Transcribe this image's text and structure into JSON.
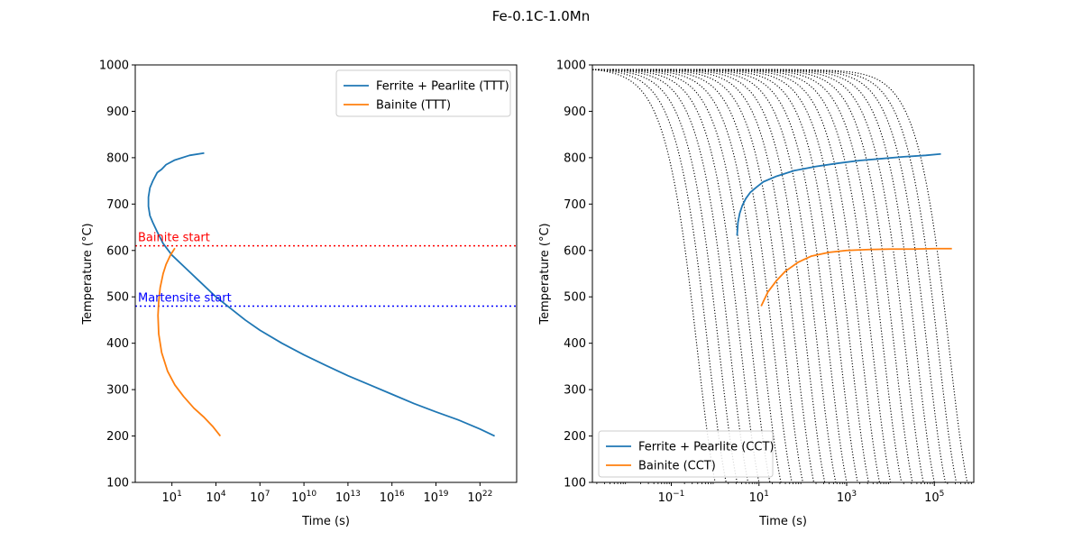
{
  "figure_title": "Fe-0.1C-1.0Mn",
  "chart_data": [
    {
      "type": "line",
      "xlabel": "Time (s)",
      "ylabel": "Temperature (°C)",
      "xscale": "log",
      "xlim_exp": [
        -1.5,
        24.5
      ],
      "ylim": [
        100,
        1000
      ],
      "xticks_exp": [
        1,
        4,
        7,
        10,
        13,
        16,
        19,
        22
      ],
      "yticks": [
        100,
        200,
        300,
        400,
        500,
        600,
        700,
        800,
        900,
        1000
      ],
      "legend_position": "top-right",
      "series": [
        {
          "name": "Ferrite + Pearlite (TTT)",
          "color": "#1f77b4",
          "log10_time": [
            3.2,
            2.2,
            1.2,
            0.6,
            0.3,
            0.0,
            -0.3,
            -0.5,
            -0.6,
            -0.6,
            -0.5,
            -0.3,
            0.0,
            0.4,
            1.0,
            2.0,
            3.0,
            4.0,
            5.0,
            6.0,
            7.0,
            8.5,
            10.0,
            11.5,
            13.0,
            14.5,
            16.0,
            17.5,
            19.0,
            20.5,
            22.0,
            23.0
          ],
          "temperature": [
            810,
            805,
            795,
            785,
            775,
            768,
            750,
            735,
            715,
            695,
            675,
            660,
            640,
            615,
            590,
            560,
            530,
            500,
            475,
            450,
            428,
            400,
            375,
            352,
            330,
            310,
            290,
            270,
            252,
            235,
            215,
            200
          ]
        },
        {
          "name": "Bainite (TTT)",
          "color": "#ff7f0e",
          "log10_time": [
            1.2,
            0.9,
            0.6,
            0.4,
            0.2,
            0.1,
            0.05,
            0.1,
            0.3,
            0.7,
            1.2,
            1.8,
            2.5,
            3.2,
            3.8,
            4.3
          ],
          "temperature": [
            605,
            590,
            570,
            550,
            520,
            490,
            460,
            420,
            380,
            340,
            310,
            285,
            260,
            240,
            220,
            200
          ]
        }
      ],
      "reference_lines": [
        {
          "label": "Bainite start",
          "temperature": 610,
          "color": "#ff0000"
        },
        {
          "label": "Martensite start",
          "temperature": 480,
          "color": "#0000ff"
        }
      ]
    },
    {
      "type": "line",
      "xlabel": "Time (s)",
      "ylabel": "Temperature (°C)",
      "xscale": "log",
      "xlim_exp": [
        -2.8,
        5.9
      ],
      "ylim": [
        100,
        1000
      ],
      "xticks_exp": [
        -1,
        1,
        3,
        5
      ],
      "yticks": [
        100,
        200,
        300,
        400,
        500,
        600,
        700,
        800,
        900,
        1000
      ],
      "legend_position": "bottom-left",
      "series": [
        {
          "name": "Ferrite + Pearlite (CCT)",
          "color": "#1f77b4",
          "log10_time": [
            0.5,
            0.52,
            0.56,
            0.62,
            0.7,
            0.8,
            0.95,
            1.1,
            1.4,
            1.8,
            2.3,
            2.8,
            3.3,
            3.8,
            4.3,
            4.8,
            5.15
          ],
          "temperature": [
            632,
            660,
            680,
            697,
            712,
            725,
            737,
            748,
            760,
            772,
            781,
            788,
            794,
            798,
            802,
            805,
            808
          ]
        },
        {
          "name": "Bainite (CCT)",
          "color": "#ff7f0e",
          "log10_time": [
            1.05,
            1.2,
            1.4,
            1.6,
            1.9,
            2.2,
            2.6,
            3.0,
            3.5,
            4.0,
            4.5,
            5.0,
            5.4
          ],
          "temperature": [
            480,
            510,
            535,
            555,
            575,
            588,
            596,
            600,
            602,
            603,
            603,
            604,
            604
          ]
        }
      ],
      "cooling_curves": {
        "color": "#000000",
        "style": "dotted",
        "start_temperature": 990,
        "log10_end_time": [
          0.0,
          0.25,
          0.5,
          0.75,
          1.0,
          1.25,
          1.5,
          1.75,
          2.0,
          2.25,
          2.5,
          2.75,
          3.0,
          3.25,
          3.5,
          3.75,
          4.0,
          4.25,
          4.5,
          4.75,
          5.0,
          5.25,
          5.5,
          5.75
        ]
      }
    }
  ]
}
